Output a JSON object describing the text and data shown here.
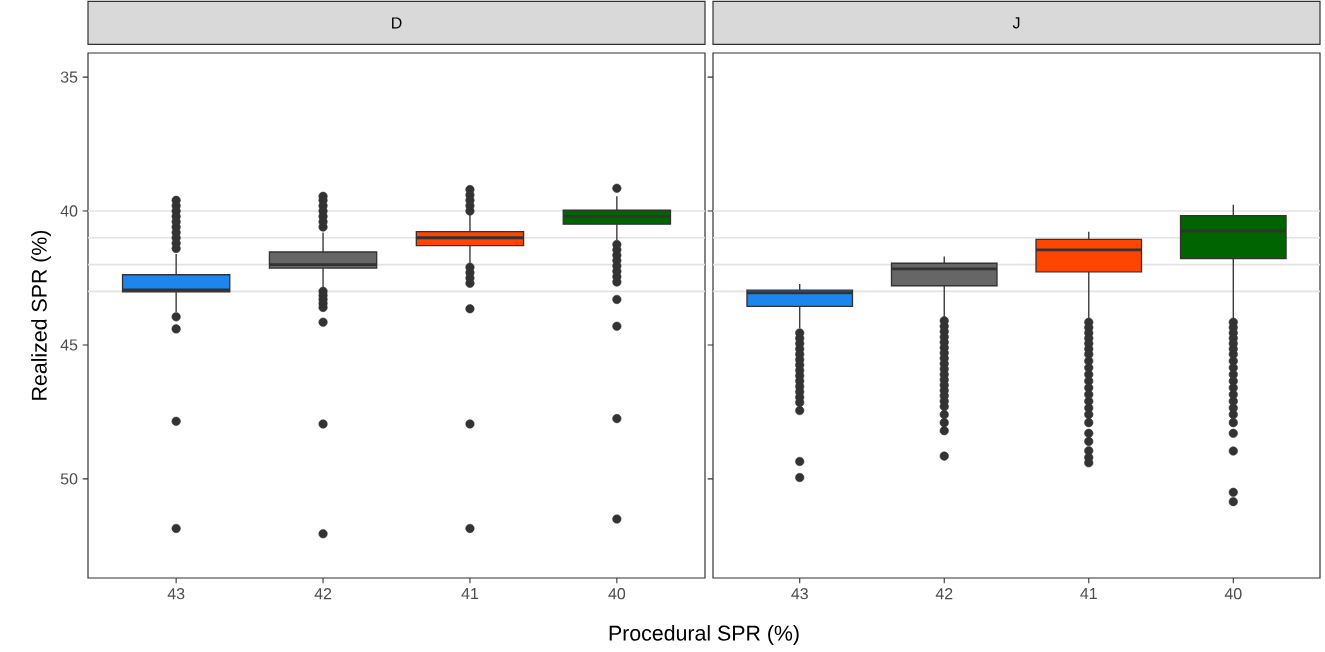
{
  "chart_data": [
    {
      "type": "box",
      "title": "D",
      "ylabel": "Realized SPR (%)",
      "xlabel": "Procedural SPR (%)",
      "categories": [
        "43",
        "42",
        "41",
        "40"
      ],
      "colors": [
        "#1c86ee",
        "#666666",
        "#ff4500",
        "#006400"
      ],
      "boxes": [
        {
          "low": 41.6,
          "q1": 42.38,
          "median": 42.95,
          "q3": 43.02,
          "high": 43.77,
          "outliers": [
            39.6,
            39.8,
            40.0,
            40.2,
            40.4,
            40.6,
            40.8,
            41.0,
            41.2,
            41.4,
            43.95,
            44.4,
            47.85,
            51.85
          ]
        },
        {
          "low": 40.8,
          "q1": 41.53,
          "median": 42.0,
          "q3": 42.13,
          "high": 42.87,
          "outliers": [
            39.45,
            39.6,
            39.8,
            40.0,
            40.2,
            40.4,
            40.6,
            43.0,
            43.15,
            43.3,
            43.45,
            43.6,
            44.15,
            47.95,
            52.05
          ]
        },
        {
          "low": 40.15,
          "q1": 40.77,
          "median": 41.0,
          "q3": 41.29,
          "high": 41.98,
          "outliers": [
            39.2,
            39.4,
            39.6,
            39.8,
            40.0,
            42.1,
            42.3,
            42.5,
            42.7,
            43.65,
            47.95,
            51.85
          ]
        },
        {
          "low": 39.45,
          "q1": 39.97,
          "median": 40.2,
          "q3": 40.49,
          "high": 41.1,
          "outliers": [
            39.15,
            41.25,
            41.45,
            41.65,
            41.85,
            42.05,
            42.25,
            42.45,
            42.65,
            43.3,
            44.3,
            47.75,
            51.5
          ]
        }
      ],
      "ylim": [
        53.7,
        34.1
      ],
      "yticks": [
        35,
        40,
        45,
        50
      ],
      "ref_lines": [
        {
          "axis": "y",
          "value": 40,
          "color": "#e3e3e3"
        },
        {
          "axis": "y",
          "value": 41,
          "color": "#e3e3e3"
        },
        {
          "axis": "y",
          "value": 42,
          "color": "#e3e3e3"
        },
        {
          "axis": "y",
          "value": 43,
          "color": "#e3e3e3"
        }
      ]
    },
    {
      "type": "box",
      "title": "J",
      "categories": [
        "43",
        "42",
        "41",
        "40"
      ],
      "colors": [
        "#1c86ee",
        "#666666",
        "#ff4500",
        "#006400"
      ],
      "boxes": [
        {
          "low": 42.72,
          "q1": 42.95,
          "median": 43.05,
          "q3": 43.56,
          "high": 44.39,
          "outliers": [
            44.55,
            44.75,
            44.95,
            45.15,
            45.35,
            45.55,
            45.75,
            45.95,
            46.15,
            46.35,
            46.55,
            46.75,
            46.95,
            47.15,
            47.45,
            49.35,
            49.95
          ]
        },
        {
          "low": 41.7,
          "q1": 41.95,
          "median": 42.16,
          "q3": 42.79,
          "high": 43.96,
          "outliers": [
            44.1,
            44.3,
            44.5,
            44.7,
            44.9,
            45.1,
            45.3,
            45.5,
            45.7,
            45.9,
            46.1,
            46.3,
            46.5,
            46.7,
            46.9,
            47.1,
            47.3,
            47.6,
            47.9,
            48.2,
            49.15
          ]
        },
        {
          "low": 40.77,
          "q1": 41.06,
          "median": 41.45,
          "q3": 42.27,
          "high": 44.0,
          "outliers": [
            44.15,
            44.35,
            44.55,
            44.75,
            44.95,
            45.15,
            45.35,
            45.6,
            45.85,
            46.1,
            46.35,
            46.6,
            46.85,
            47.1,
            47.35,
            47.6,
            47.9,
            48.3,
            48.6,
            48.95,
            49.2,
            49.4
          ]
        },
        {
          "low": 39.77,
          "q1": 40.17,
          "median": 40.74,
          "q3": 41.78,
          "high": 44.0,
          "outliers": [
            44.15,
            44.35,
            44.55,
            44.75,
            44.95,
            45.15,
            45.35,
            45.6,
            45.85,
            46.1,
            46.35,
            46.6,
            46.85,
            47.1,
            47.35,
            47.6,
            47.9,
            48.3,
            48.96,
            50.5,
            50.85
          ]
        }
      ],
      "ylim": [
        53.7,
        34.1
      ],
      "yticks": [
        35,
        40,
        45,
        50
      ],
      "tick_labels": "x",
      "ref_lines": [
        {
          "axis": "y",
          "value": 40,
          "color": "#e3e3e3"
        },
        {
          "axis": "y",
          "value": 41,
          "color": "#e3e3e3"
        },
        {
          "axis": "y",
          "value": 42,
          "color": "#e3e3e3"
        },
        {
          "axis": "y",
          "value": 43,
          "color": "#e3e3e3"
        }
      ]
    }
  ]
}
